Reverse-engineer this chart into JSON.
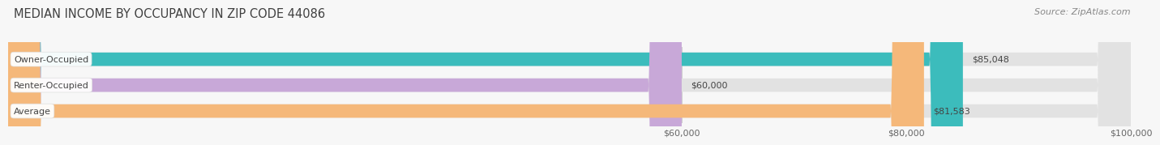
{
  "title": "MEDIAN INCOME BY OCCUPANCY IN ZIP CODE 44086",
  "source": "Source: ZipAtlas.com",
  "categories": [
    "Owner-Occupied",
    "Renter-Occupied",
    "Average"
  ],
  "values": [
    85048,
    60000,
    81583
  ],
  "labels": [
    "$85,048",
    "$60,000",
    "$81,583"
  ],
  "bar_colors": [
    "#3cbcbc",
    "#c8a8d8",
    "#f5b87a"
  ],
  "bar_bg_color": "#e8e8e8",
  "xmin": 0,
  "xmax": 100000,
  "xticks": [
    60000,
    80000,
    100000
  ],
  "xtick_labels": [
    "$60,000",
    "$80,000",
    "$100,000"
  ],
  "title_fontsize": 10.5,
  "source_fontsize": 8,
  "label_fontsize": 8,
  "tick_fontsize": 8,
  "bar_height": 0.52,
  "background_color": "#f7f7f7",
  "label_color": "#555555",
  "title_color": "#404040"
}
